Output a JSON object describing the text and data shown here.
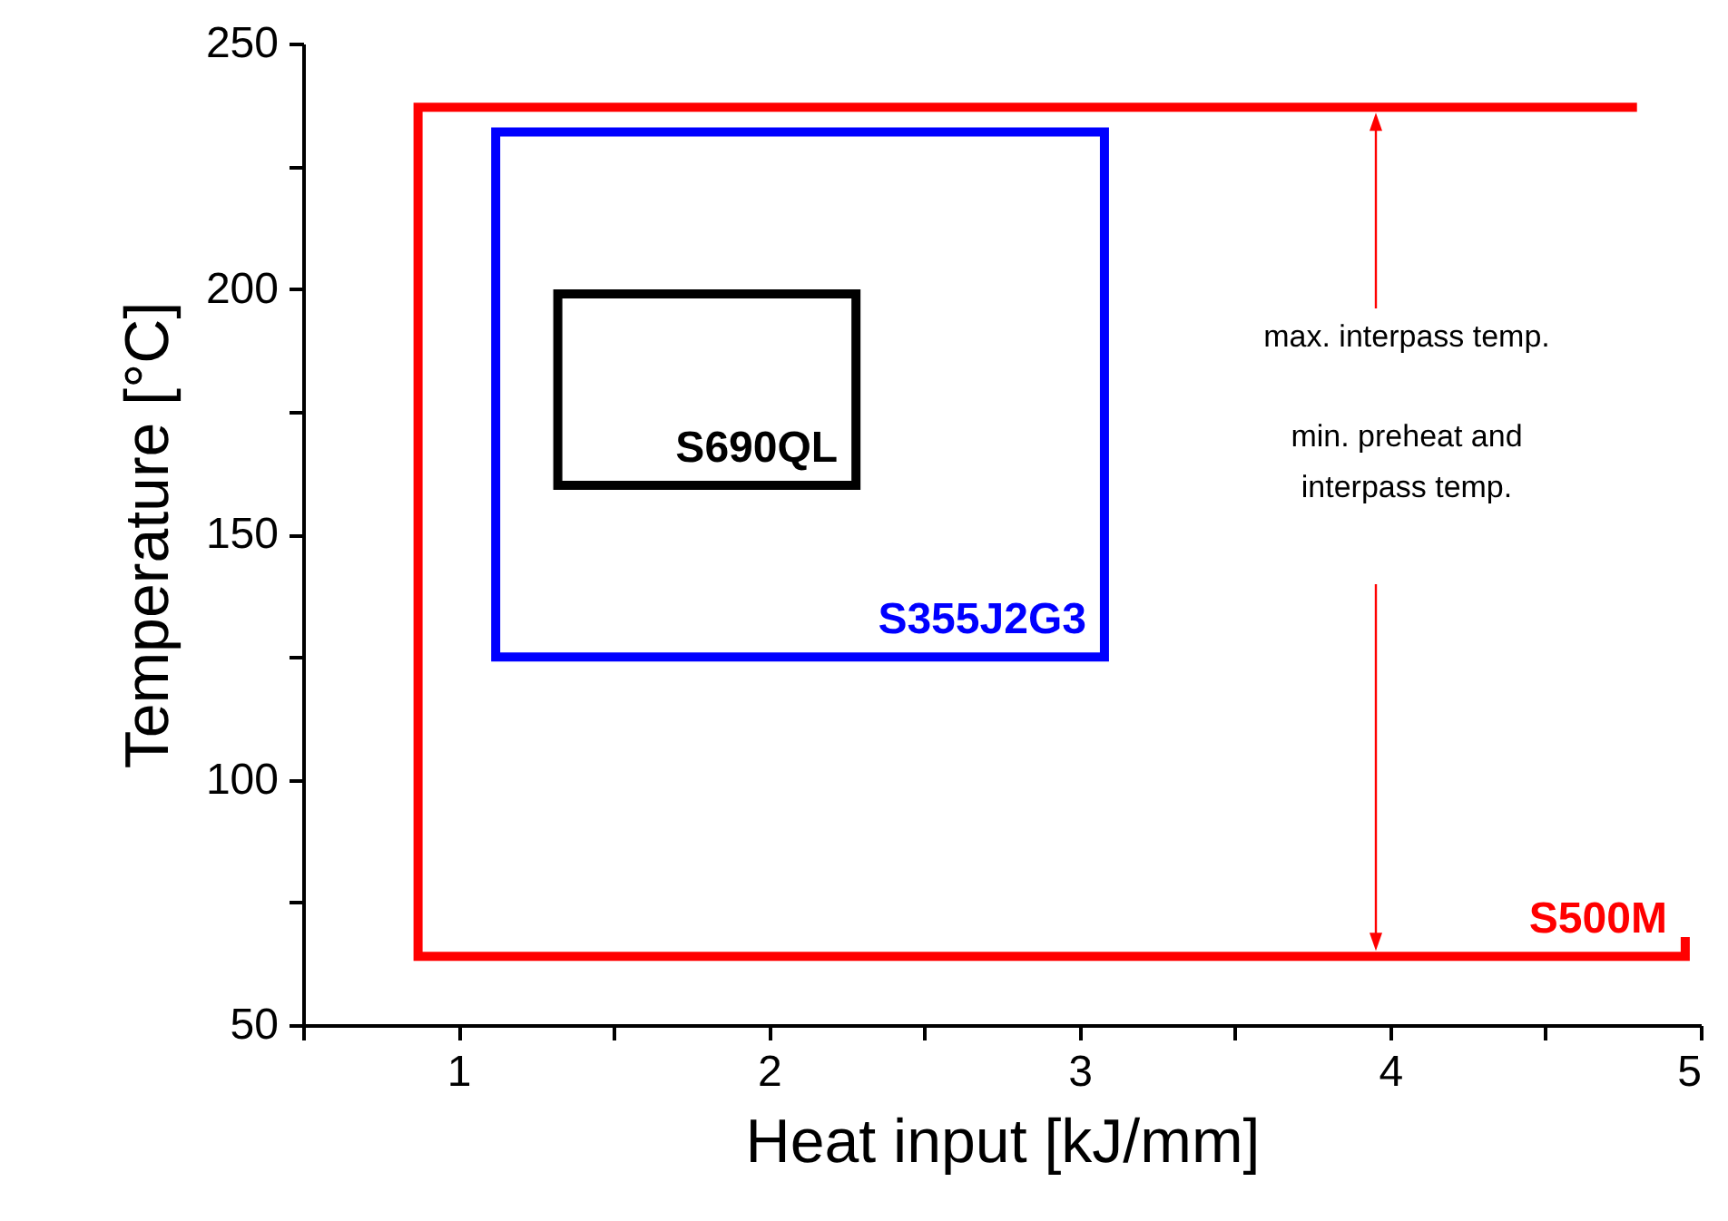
{
  "chart_data": {
    "type": "line",
    "xlabel": "Heat input [kJ/mm]",
    "ylabel": "Temperature [°C]",
    "xlim": [
      0.5,
      5
    ],
    "xticks": [
      {
        "value": 0.5,
        "label": null
      },
      1,
      {
        "value": 1.5,
        "label": null
      },
      2,
      {
        "value": 2.5,
        "label": null
      },
      3,
      {
        "value": 3.5,
        "label": null
      },
      4,
      {
        "value": 4.5,
        "label": null
      },
      5
    ],
    "ylim": [
      50,
      250
    ],
    "yticks": [
      50,
      {
        "value": 75,
        "label": null
      },
      100,
      {
        "value": 125,
        "label": null
      },
      150,
      {
        "value": 175,
        "label": null
      },
      200,
      {
        "value": 225,
        "label": null
      },
      250
    ],
    "grid": false,
    "marker": "none",
    "line_style": "solid",
    "series": [
      {
        "name": "S500M",
        "color": "#ff0000",
        "x": [
          4.78,
          0.87,
          0.87,
          4.95,
          4.95
        ],
        "values": [
          237,
          237,
          64,
          64,
          67
        ]
      },
      {
        "name": "S355J2G3",
        "color": "#0000ff",
        "x": [
          2.1,
          3.08,
          3.08,
          1.12,
          1.12,
          2.09
        ],
        "values": [
          232,
          232,
          125,
          125,
          232,
          232
        ]
      },
      {
        "name": "S690QL",
        "color": "#000000",
        "x": [
          1.8,
          2.28,
          2.28,
          1.32,
          1.32,
          1.79
        ],
        "values": [
          199,
          199,
          160,
          160,
          199,
          199
        ]
      }
    ],
    "annotations": [
      "max. interpass temp.",
      "min. preheat and\ninterpass temp."
    ]
  }
}
